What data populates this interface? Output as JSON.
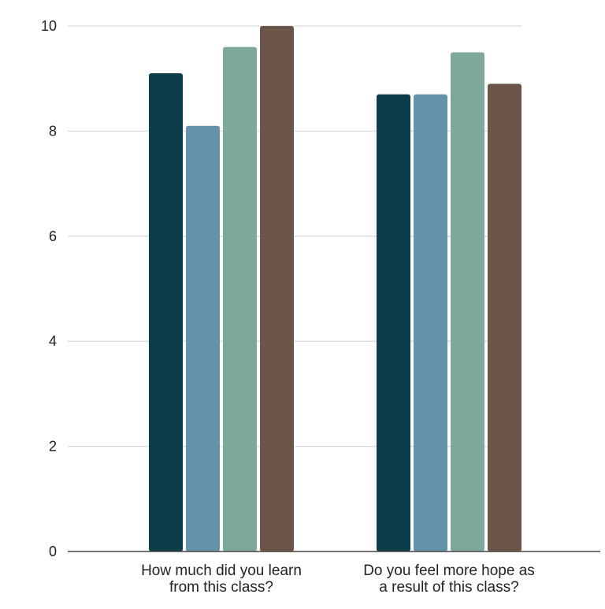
{
  "chart_data": {
    "type": "bar",
    "title": "",
    "xlabel": "",
    "ylabel": "",
    "categories": [
      [
        "How much did you learn",
        "from this class?"
      ],
      [
        "Do you feel more hope as",
        "a result of this class?"
      ]
    ],
    "series": [
      {
        "color": "#0c3d4a",
        "values": [
          9.1,
          8.7
        ]
      },
      {
        "color": "#6693ab",
        "values": [
          8.1,
          8.7
        ]
      },
      {
        "color": "#7ea99a",
        "values": [
          9.6,
          9.5
        ]
      },
      {
        "color": "#6b5548",
        "values": [
          10.0,
          8.9
        ]
      }
    ],
    "ylim": [
      0,
      10
    ],
    "yticks": [
      0,
      2,
      4,
      6,
      8,
      10
    ],
    "grid": true,
    "legend": "none"
  }
}
